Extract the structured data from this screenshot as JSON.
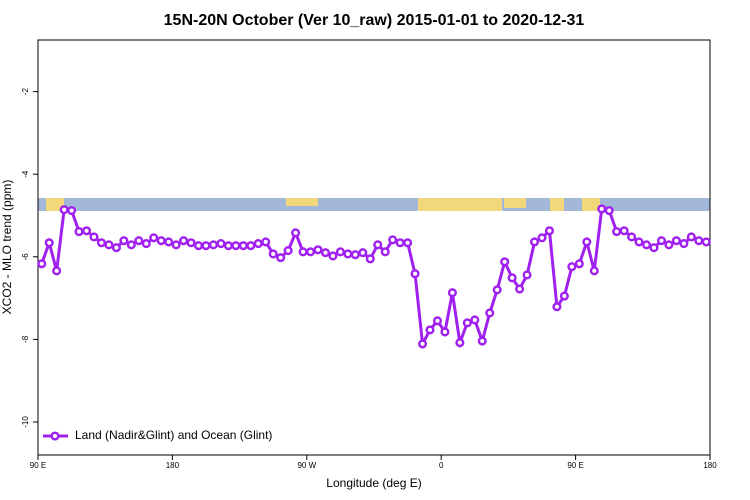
{
  "chart_data": {
    "type": "line",
    "title": "15N-20N October (Ver 10_raw)   2015-01-01 to 2020-12-31",
    "x_label": "Longitude (deg E)",
    "y_label": "XCO2 - MLO trend (ppm)",
    "x": [
      92.5,
      97.5,
      102.5,
      107.5,
      112.5,
      117.5,
      122.5,
      127.5,
      132.5,
      137.5,
      142.5,
      147.5,
      152.5,
      157.5,
      162.5,
      167.5,
      172.5,
      177.5,
      182.5,
      187.5,
      192.5,
      197.5,
      202.5,
      207.5,
      212.5,
      217.5,
      222.5,
      227.5,
      232.5,
      237.5,
      242.5,
      247.5,
      252.5,
      257.5,
      262.5,
      267.5,
      272.5,
      277.5,
      282.5,
      287.5,
      292.5,
      297.5,
      302.5,
      307.5,
      312.5,
      317.5,
      322.5,
      327.5,
      332.5,
      337.5,
      342.5,
      347.5,
      352.5,
      357.5,
      362.5,
      367.5,
      372.5,
      377.5,
      382.5,
      387.5,
      392.5,
      397.5,
      402.5,
      407.5,
      412.5,
      417.5,
      422.5,
      427.5,
      432.5,
      437.5,
      442.5,
      447.5,
      452.5,
      457.5,
      462.5,
      467.5,
      472.5,
      477.5,
      482.5,
      487.5,
      492.5,
      497.5,
      502.5,
      507.5,
      512.5,
      517.5,
      522.5,
      527.5,
      532.5,
      537.5
    ],
    "series": [
      {
        "name": "Land (Nadir&Glint) and Ocean (Glint)",
        "color": "#a020f0",
        "values": [
          -6.17,
          -5.66,
          -6.34,
          -4.86,
          -4.88,
          -5.39,
          -5.37,
          -5.52,
          -5.66,
          -5.71,
          -5.78,
          -5.61,
          -5.71,
          -5.61,
          -5.68,
          -5.54,
          -5.61,
          -5.64,
          -5.71,
          -5.61,
          -5.66,
          -5.73,
          -5.73,
          -5.71,
          -5.68,
          -5.73,
          -5.73,
          -5.73,
          -5.73,
          -5.68,
          -5.64,
          -5.93,
          -6.02,
          -5.85,
          -5.42,
          -5.88,
          -5.88,
          -5.83,
          -5.9,
          -5.98,
          -5.88,
          -5.93,
          -5.95,
          -5.9,
          -6.05,
          -5.71,
          -5.88,
          -5.59,
          -5.66,
          -5.66,
          -6.41,
          -8.11,
          -7.77,
          -7.55,
          -7.82,
          -6.87,
          -8.08,
          -7.6,
          -7.53,
          -8.04,
          -7.36,
          -6.8,
          -6.12,
          -6.51,
          -6.78,
          -6.44,
          -5.64,
          -5.54,
          -5.37,
          -7.21,
          -6.95,
          -6.24,
          -6.17,
          -5.64,
          -6.34,
          -4.84,
          -4.88,
          -5.39,
          -5.37,
          -5.52,
          -5.64,
          -5.71,
          -5.78,
          -5.61,
          -5.71,
          -5.61,
          -5.68,
          -5.52,
          -5.61,
          -5.64
        ]
      }
    ],
    "xlim": [
      90,
      540
    ],
    "xticks": [
      {
        "value": 90,
        "label": "90 E"
      },
      180,
      {
        "value": 270,
        "label": "90 W"
      },
      {
        "value": 360,
        "label": "0"
      },
      {
        "value": 450,
        "label": "90 E"
      },
      {
        "value": 540,
        "label": "180"
      }
    ],
    "ylim": [
      -10.8,
      -0.75
    ],
    "yticks": [
      -2,
      -4,
      -6,
      -8,
      -10
    ],
    "legend": "lower left"
  }
}
